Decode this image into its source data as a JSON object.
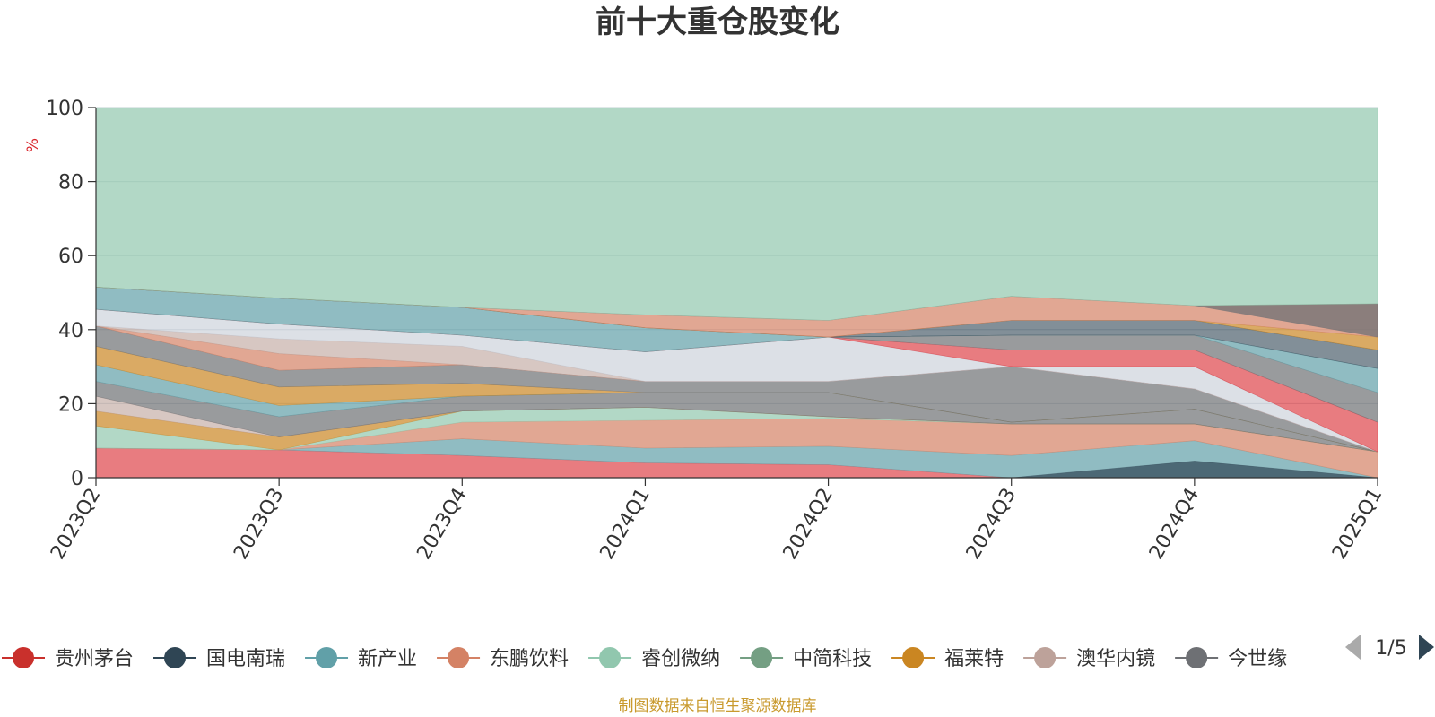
{
  "chart_data": {
    "type": "area",
    "title": "前十大重仓股变化",
    "ylabel": "%",
    "ylim": [
      0,
      100
    ],
    "yticks": [
      0,
      20,
      40,
      60,
      80,
      100
    ],
    "categories": [
      "2023Q2",
      "2023Q3",
      "2023Q4",
      "2024Q1",
      "2024Q2",
      "2024Q3",
      "2024Q4",
      "2025Q1"
    ],
    "grid": true,
    "legend_position": "bottom",
    "legend_page": "1/5",
    "legend": [
      {
        "name": "贵州茅台",
        "color": "#c9302c"
      },
      {
        "name": "国电南瑞",
        "color": "#2f4554"
      },
      {
        "name": "新产业",
        "color": "#61a0a8"
      },
      {
        "name": "东鹏饮料",
        "color": "#d48265"
      },
      {
        "name": "睿创微纳",
        "color": "#91c7ae"
      },
      {
        "name": "中简科技",
        "color": "#749f83"
      },
      {
        "name": "福莱特",
        "color": "#ca8622"
      },
      {
        "name": "澳华内镜",
        "color": "#bda29a"
      },
      {
        "name": "今世缘",
        "color": "#6e7074"
      }
    ],
    "bands": [
      {
        "color": "#d9242b",
        "opacity": 0.6,
        "lower": [
          0,
          0,
          0,
          0,
          0,
          0,
          0,
          0
        ],
        "upper": [
          8,
          7.5,
          6,
          4,
          3.5,
          0,
          0,
          0
        ]
      },
      {
        "color": "#61a0a8",
        "opacity": 0.7,
        "lower": [
          8,
          7.5,
          6,
          4,
          3.5,
          0,
          0,
          0
        ],
        "upper": [
          8,
          7.5,
          10.5,
          8,
          8.5,
          6,
          10,
          0
        ]
      },
      {
        "color": "#2f4554",
        "opacity": 0.7,
        "lower": [
          0,
          0,
          0,
          0,
          0,
          0,
          0,
          0
        ],
        "upper": [
          0,
          0,
          0,
          0,
          0,
          0,
          4.5,
          0
        ]
      },
      {
        "color": "#d48265",
        "opacity": 0.7,
        "lower": [
          8,
          7.5,
          10.5,
          8,
          8.5,
          6,
          10,
          0
        ],
        "upper": [
          8,
          7.5,
          15,
          15.5,
          16,
          14.5,
          14.5,
          7
        ]
      },
      {
        "color": "#91c7ae",
        "opacity": 0.7,
        "lower": [
          8,
          7.5,
          15,
          15.5,
          16,
          14.5,
          14.5,
          7
        ],
        "upper": [
          14,
          7.5,
          18,
          19,
          16.5,
          14.5,
          14.5,
          7
        ]
      },
      {
        "color": "#ca8622",
        "opacity": 0.7,
        "lower": [
          14,
          7.5,
          18,
          19,
          16.5,
          14.5,
          14.5,
          7
        ],
        "upper": [
          18,
          11,
          18,
          19,
          16.5,
          14.5,
          14.5,
          7
        ]
      },
      {
        "color": "#bda29a",
        "opacity": 0.6,
        "lower": [
          18,
          11,
          18,
          19,
          16.5,
          14.5,
          14.5,
          7
        ],
        "upper": [
          22,
          11,
          18,
          19,
          16.5,
          14.5,
          14.5,
          7
        ]
      },
      {
        "color": "#6e7074",
        "opacity": 0.7,
        "lower": [
          22,
          11,
          18,
          19,
          16.5,
          14.5,
          14.5,
          7
        ],
        "upper": [
          26,
          16.5,
          22,
          23,
          23,
          15,
          18.5,
          7
        ]
      },
      {
        "color": "#61a0a8",
        "opacity": 0.7,
        "lower": [
          26,
          16.5,
          22,
          23,
          23,
          15,
          18.5,
          7
        ],
        "upper": [
          30.5,
          19.5,
          22,
          23,
          23,
          15,
          18.5,
          7
        ]
      },
      {
        "color": "#ca8622",
        "opacity": 0.7,
        "lower": [
          30.5,
          19.5,
          22,
          23,
          23,
          15,
          18.5,
          7
        ],
        "upper": [
          35.5,
          24.5,
          25.5,
          23,
          23,
          15,
          18.5,
          7
        ]
      },
      {
        "color": "#6e7074",
        "opacity": 0.7,
        "lower": [
          35.5,
          24.5,
          25.5,
          23,
          23,
          15,
          18.5,
          7
        ],
        "upper": [
          41,
          29,
          30.5,
          26,
          26,
          30,
          24,
          7
        ]
      },
      {
        "color": "#d48265",
        "opacity": 0.7,
        "lower": [
          41,
          29,
          30.5,
          26,
          26,
          30,
          24,
          7
        ],
        "upper": [
          41,
          33.5,
          30.5,
          26,
          26,
          30,
          24,
          7
        ]
      },
      {
        "color": "#bda29a",
        "opacity": 0.6,
        "lower": [
          41,
          33.5,
          30.5,
          26,
          26,
          30,
          24,
          7
        ],
        "upper": [
          41,
          37.5,
          35.5,
          26,
          26,
          30,
          24,
          7
        ]
      },
      {
        "color": "#c5cbd6",
        "opacity": 0.6,
        "lower": [
          41,
          37.5,
          35.5,
          26,
          26,
          30,
          24,
          7
        ],
        "upper": [
          45.5,
          41.5,
          38.5,
          34,
          38,
          30,
          30,
          7
        ]
      },
      {
        "color": "#d9242b",
        "opacity": 0.6,
        "lower": [
          45.5,
          41.5,
          38.5,
          34,
          38,
          30,
          30,
          7
        ],
        "upper": [
          45.5,
          41.5,
          38.5,
          34,
          38,
          34.5,
          34.5,
          15
        ]
      },
      {
        "color": "#6e7074",
        "opacity": 0.7,
        "lower": [
          45.5,
          41.5,
          38.5,
          34,
          38,
          34.5,
          34.5,
          15
        ],
        "upper": [
          45.5,
          41.5,
          38.5,
          34,
          38,
          38.5,
          38.5,
          23
        ]
      },
      {
        "color": "#61a0a8",
        "opacity": 0.7,
        "lower": [
          45.5,
          41.5,
          38.5,
          34,
          38,
          38.5,
          38.5,
          23
        ],
        "upper": [
          51.5,
          48.5,
          46,
          40.5,
          38,
          38.5,
          38.5,
          29.5
        ]
      },
      {
        "color": "#2f4554",
        "opacity": 0.6,
        "lower": [
          51.5,
          48.5,
          46,
          40.5,
          38,
          38.5,
          38.5,
          29.5
        ],
        "upper": [
          51.5,
          48.5,
          46,
          40.5,
          38,
          42.5,
          42.5,
          34.5
        ]
      },
      {
        "color": "#ca8622",
        "opacity": 0.7,
        "lower": [
          51.5,
          48.5,
          46,
          40.5,
          38,
          42.5,
          42.5,
          34.5
        ],
        "upper": [
          51.5,
          48.5,
          46,
          40.5,
          38,
          42.5,
          42.5,
          38
        ]
      },
      {
        "color": "#d48265",
        "opacity": 0.7,
        "lower": [
          51.5,
          48.5,
          46,
          40.5,
          38,
          42.5,
          42.5,
          38
        ],
        "upper": [
          51.5,
          48.5,
          46,
          44,
          42.5,
          49,
          46.5,
          47
        ]
      },
      {
        "color": "#6e7074",
        "opacity": 0.75,
        "lower": [
          51.5,
          48.5,
          46,
          44,
          42.5,
          49,
          46.5,
          38
        ],
        "upper": [
          51.5,
          48.5,
          46,
          44,
          42.5,
          49,
          46.5,
          47
        ]
      },
      {
        "color": "#91c7ae",
        "opacity": 0.7,
        "lower": [
          51.5,
          48.5,
          46,
          44,
          42.5,
          49,
          46.5,
          47
        ],
        "upper": [
          100,
          100,
          100,
          100,
          100,
          100,
          100,
          100
        ]
      }
    ]
  },
  "source_note": "制图数据来自恒生聚源数据库"
}
